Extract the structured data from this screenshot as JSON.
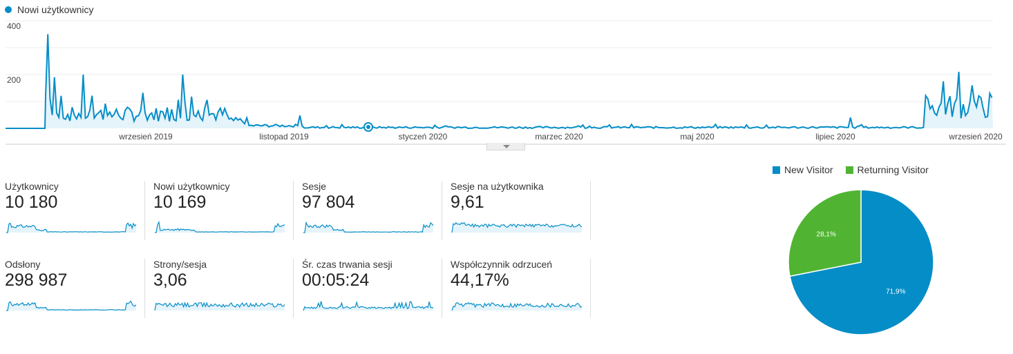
{
  "main_chart": {
    "legend": "Nowi użytkownicy",
    "ylim": [
      0,
      400
    ],
    "y_ticks": [
      "400",
      "200"
    ],
    "x_ticks": [
      "wrzesień 2019",
      "listopad 2019",
      "styczeń 2020",
      "marzec 2020",
      "maj 2020",
      "lipiec 2020",
      "wrzesień 2020"
    ],
    "color": "#058dc7",
    "fill": "#e5f3fa"
  },
  "metrics": [
    {
      "label": "Użytkownicy",
      "value": "10 180"
    },
    {
      "label": "Nowi użytkownicy",
      "value": "10 169"
    },
    {
      "label": "Sesje",
      "value": "97 804"
    },
    {
      "label": "Sesje na użytkownika",
      "value": "9,61"
    },
    {
      "label": "Odsłony",
      "value": "298 987"
    },
    {
      "label": "Strony/sesja",
      "value": "3,06"
    },
    {
      "label": "Śr. czas trwania sesji",
      "value": "00:05:24"
    },
    {
      "label": "Współczynnik odrzuceń",
      "value": "44,17%"
    }
  ],
  "chart_data": [
    {
      "type": "area",
      "title": "",
      "series": [
        {
          "name": "Nowi użytkownicy"
        }
      ],
      "x_ticks": [
        "wrzesień 2019",
        "listopad 2019",
        "styczeń 2020",
        "marzec 2020",
        "maj 2020",
        "lipiec 2020",
        "wrzesień 2020"
      ],
      "ylim": [
        0,
        400
      ],
      "y_ticks": [
        200,
        400
      ],
      "peaks": [
        {
          "x": "sierpień 2019",
          "y": 350
        },
        {
          "x": "sierpień 2019",
          "y": 200
        },
        {
          "x": "wrzesień 2019",
          "y": 200
        },
        {
          "x": "wrzesień 2020",
          "y": 210
        }
      ],
      "grid": true
    },
    {
      "type": "pie",
      "categories": [
        "New Visitor",
        "Returning Visitor"
      ],
      "values": [
        71.9,
        28.1
      ],
      "labels": [
        "71,9%",
        "28,1%"
      ],
      "colors": [
        "#058dc7",
        "#50b432"
      ],
      "legend_position": "top"
    }
  ],
  "pie": {
    "legend": [
      {
        "label": "New Visitor",
        "color": "#058dc7"
      },
      {
        "label": "Returning Visitor",
        "color": "#50b432"
      }
    ],
    "labels": [
      "71,9%",
      "28,1%"
    ]
  }
}
